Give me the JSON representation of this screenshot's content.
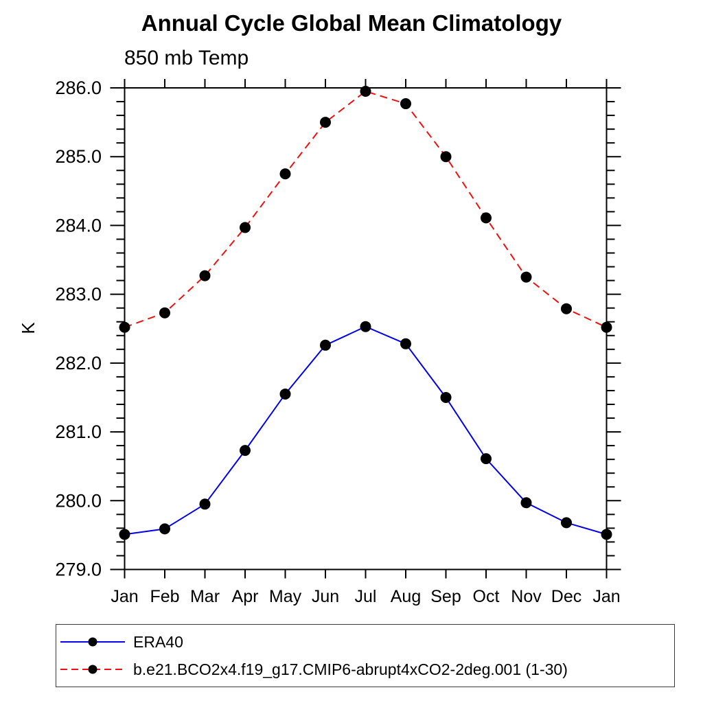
{
  "chart": {
    "title": "Annual Cycle Global Mean Climatology",
    "subtitle": "850 mb Temp",
    "ylabel": "K"
  },
  "chart_data": {
    "type": "line",
    "title": "Annual Cycle Global Mean Climatology",
    "subtitle": "850 mb Temp",
    "xlabel": "",
    "ylabel": "K",
    "categories": [
      "Jan",
      "Feb",
      "Mar",
      "Apr",
      "May",
      "Jun",
      "Jul",
      "Aug",
      "Sep",
      "Oct",
      "Nov",
      "Dec",
      "Jan"
    ],
    "ylim": [
      279.0,
      286.0
    ],
    "ytick_interval_major": 1.0,
    "ytick_interval_minor": 0.2,
    "ytick_labels": [
      "279.0",
      "280.0",
      "281.0",
      "282.0",
      "283.0",
      "284.0",
      "285.0",
      "286.0"
    ],
    "grid": false,
    "legend_position": "bottom-left",
    "frame_color": "#000000",
    "marker": {
      "shape": "circle",
      "color": "#000000"
    },
    "series": [
      {
        "name": "ERA40",
        "color": "#0000ee",
        "style": "solid",
        "values": [
          279.51,
          279.59,
          279.95,
          280.73,
          281.55,
          282.26,
          282.53,
          282.28,
          281.5,
          280.61,
          279.97,
          279.68,
          279.51
        ]
      },
      {
        "name": "b.e21.BCO2x4.f19_g17.CMIP6-abrupt4xCO2-2deg.001 (1-30)",
        "color": "#f01010",
        "style": "dashed",
        "values": [
          282.52,
          282.73,
          283.27,
          283.97,
          284.75,
          285.5,
          285.95,
          285.77,
          285.0,
          284.11,
          283.25,
          282.79,
          282.52
        ]
      }
    ]
  }
}
